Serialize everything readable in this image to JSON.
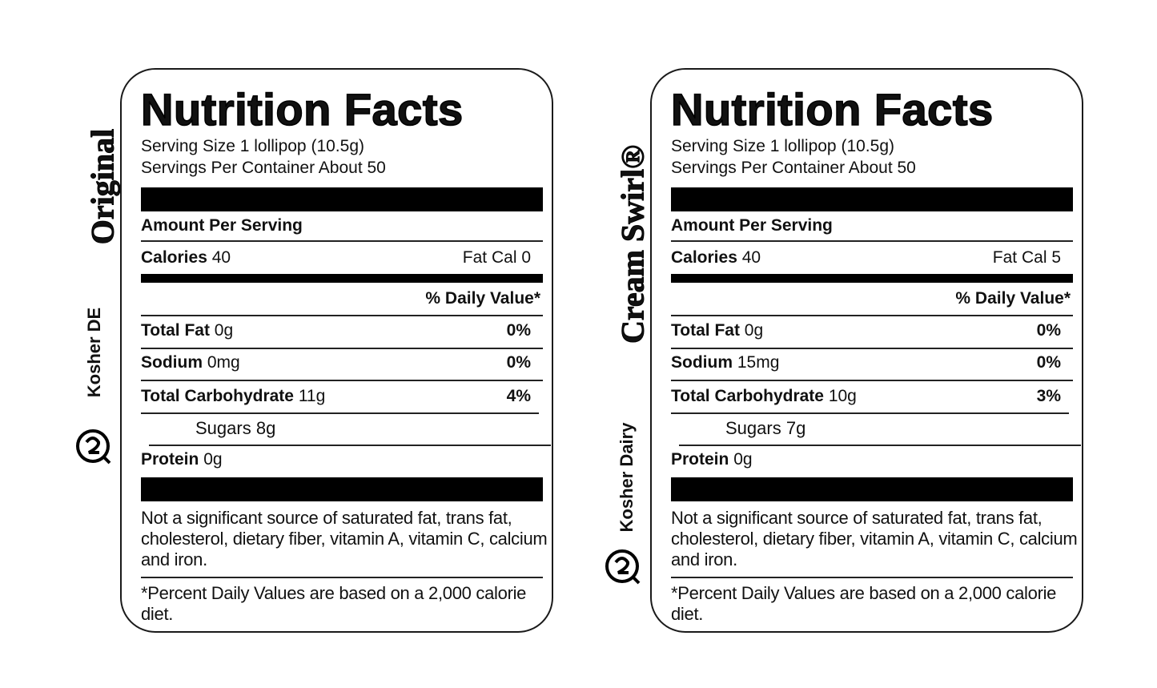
{
  "labels": [
    {
      "side_title": "Original",
      "kosher": "Kosher DE",
      "title": "Nutrition Facts",
      "serving_size": "Serving Size 1 lollipop (10.5g)",
      "servings": "Servings Per Container About 50",
      "amount_per_serving": "Amount Per Serving",
      "calories": {
        "label": "Calories",
        "value": "40"
      },
      "fat_cal": "Fat Cal 0",
      "daily_value_header": "% Daily Value*",
      "rows": [
        {
          "name": "Total Fat",
          "amount": "0g",
          "dv": "0%"
        },
        {
          "name": "Sodium",
          "amount": "0mg",
          "dv": "0%"
        },
        {
          "name": "Total Carbohydrate",
          "amount": "11g",
          "dv": "4%"
        },
        {
          "name": "Sugars",
          "amount": "8g"
        },
        {
          "name": "Protein",
          "amount": "0g"
        }
      ],
      "footnote": "Not a significant source of saturated fat, trans fat, cholesterol, dietary fiber, vitamin A, vitamin C, calcium and iron.",
      "percent_note": "*Percent Daily Values are based on a 2,000 calorie diet."
    },
    {
      "side_title": "Cream Swirl®",
      "kosher": "Kosher Dairy",
      "title": "Nutrition Facts",
      "serving_size": "Serving Size 1 lollipop (10.5g)",
      "servings": "Servings Per Container About 50",
      "amount_per_serving": "Amount Per Serving",
      "calories": {
        "label": "Calories",
        "value": "40"
      },
      "fat_cal": "Fat Cal 5",
      "daily_value_header": "% Daily Value*",
      "rows": [
        {
          "name": "Total Fat",
          "amount": "0g",
          "dv": "0%"
        },
        {
          "name": "Sodium",
          "amount": "15mg",
          "dv": "0%"
        },
        {
          "name": "Total Carbohydrate",
          "amount": "10g",
          "dv": "3%"
        },
        {
          "name": "Sugars",
          "amount": "7g"
        },
        {
          "name": "Protein",
          "amount": "0g"
        }
      ],
      "footnote": "Not a significant source of saturated fat, trans fat, cholesterol, dietary fiber, vitamin A, vitamin C, calcium and iron.",
      "percent_note": "*Percent Daily Values are based on a 2,000 calorie diet."
    }
  ]
}
